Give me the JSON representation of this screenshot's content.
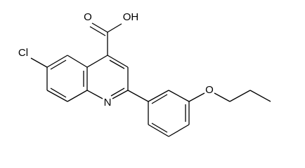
{
  "atoms": {
    "carbonyl_oxygen": "O",
    "hydroxyl": "OH",
    "chlorine": "Cl",
    "nitrogen": "N",
    "ether_oxygen": "O"
  }
}
